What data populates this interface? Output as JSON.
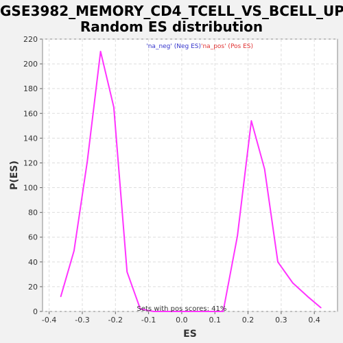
{
  "chart_data": {
    "type": "line",
    "title_line1": "GSE3982_MEMORY_CD4_TCELL_VS_BCELL_UP:",
    "title_line2": "Random ES distribution",
    "xlabel": "ES",
    "ylabel": "P(ES)",
    "xlim": [
      -0.42,
      0.47
    ],
    "ylim": [
      0,
      220
    ],
    "xticks": [
      -0.4,
      -0.3,
      -0.2,
      -0.1,
      0.0,
      0.1,
      0.2,
      0.3,
      0.4
    ],
    "xtick_labels": [
      "-0.4",
      "-0.3",
      "-0.2",
      "-0.1",
      "0.0",
      "0.1",
      "0.2",
      "0.3",
      "0.4"
    ],
    "yticks": [
      0,
      20,
      40,
      60,
      80,
      100,
      120,
      140,
      160,
      180,
      200,
      220
    ],
    "ytick_labels": [
      "0",
      "20",
      "40",
      "60",
      "80",
      "100",
      "120",
      "140",
      "160",
      "180",
      "200",
      "220"
    ],
    "grid": true,
    "legend": {
      "placement": "top-center",
      "entries": [
        {
          "label": "'na_neg' (Neg ES)",
          "color": "#3333cc"
        },
        {
          "label": "'na_pos' (Pos ES)",
          "color": "#e03030"
        }
      ]
    },
    "annotation": "Sets with pos scores: 41%",
    "series": [
      {
        "color": "#ff33ff",
        "x": [
          -0.365,
          -0.325,
          -0.285,
          -0.245,
          -0.205,
          -0.165,
          -0.125,
          -0.085,
          -0.045,
          -0.005,
          0.035,
          0.075,
          0.125,
          0.168,
          0.21,
          0.25,
          0.29,
          0.335,
          0.38,
          0.42
        ],
        "y": [
          12,
          49,
          121,
          210,
          165,
          32,
          2,
          0,
          0,
          0,
          0,
          0,
          0,
          61,
          154,
          115,
          40,
          23,
          12,
          3
        ]
      }
    ]
  }
}
